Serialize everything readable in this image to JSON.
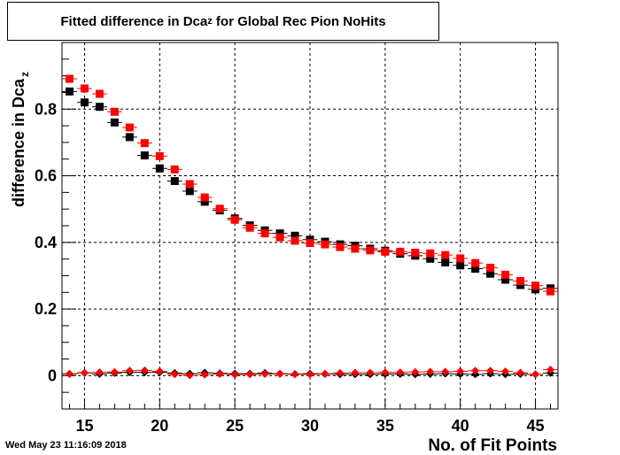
{
  "title": {
    "prefix": "Fitted difference in Dca",
    "subscript": "z",
    "suffix": " for Global Rec Pion NoHits"
  },
  "timestamp": "Wed May 23 11:16:09 2018",
  "chart_data": {
    "type": "scatter",
    "title": "Fitted difference in Dca_z for Global Rec Pion NoHits",
    "xlabel": "No. of Fit Points",
    "ylabel_prefix": "difference in Dca",
    "ylabel_subscript": "z",
    "xlim": [
      13.5,
      46.5
    ],
    "ylim": [
      -0.1,
      1.0
    ],
    "grid": true,
    "x_ticks": [
      15,
      20,
      25,
      30,
      35,
      40,
      45
    ],
    "y_ticks": [
      0,
      0.2,
      0.4,
      0.6,
      0.8
    ],
    "y_tick_labels": [
      "0",
      "0.2",
      "0.4",
      "0.6",
      "0.8"
    ],
    "x": [
      14,
      15,
      16,
      17,
      18,
      19,
      20,
      21,
      22,
      23,
      24,
      25,
      26,
      27,
      28,
      29,
      30,
      31,
      32,
      33,
      34,
      35,
      36,
      37,
      38,
      39,
      40,
      41,
      42,
      43,
      44,
      45,
      46
    ],
    "series": [
      {
        "color": "#000000",
        "marker": "square",
        "values": [
          0.853,
          0.82,
          0.807,
          0.76,
          0.716,
          0.661,
          0.622,
          0.584,
          0.554,
          0.522,
          0.496,
          0.472,
          0.451,
          0.436,
          0.427,
          0.42,
          0.408,
          0.402,
          0.394,
          0.39,
          0.381,
          0.375,
          0.366,
          0.36,
          0.351,
          0.34,
          0.331,
          0.321,
          0.306,
          0.288,
          0.272,
          0.259,
          0.262
        ]
      },
      {
        "color": "#ff0000",
        "marker": "square",
        "values": [
          0.891,
          0.862,
          0.846,
          0.792,
          0.745,
          0.698,
          0.659,
          0.619,
          0.575,
          0.535,
          0.501,
          0.468,
          0.444,
          0.427,
          0.415,
          0.405,
          0.398,
          0.394,
          0.386,
          0.381,
          0.376,
          0.372,
          0.372,
          0.369,
          0.367,
          0.362,
          0.352,
          0.338,
          0.324,
          0.303,
          0.284,
          0.27,
          0.253
        ]
      },
      {
        "color": "#000000",
        "marker": "diamond",
        "values": [
          0.005,
          0.008,
          0.005,
          0.008,
          0.01,
          0.01,
          0.01,
          0.008,
          0.006,
          0.009,
          0.007,
          0.006,
          0.006,
          0.008,
          0.006,
          0.005,
          0.006,
          0.005,
          0.004,
          0.004,
          0.004,
          0.005,
          0.005,
          0.004,
          0.005,
          0.006,
          0.005,
          0.004,
          0.006,
          0.004,
          0.005,
          0.004,
          0.008
        ]
      },
      {
        "color": "#ff0000",
        "marker": "diamond",
        "values": [
          0.006,
          0.009,
          0.01,
          0.011,
          0.015,
          0.016,
          0.013,
          0.004,
          0.001,
          0.003,
          0.005,
          0.003,
          0.004,
          0.005,
          0.005,
          0.004,
          0.004,
          0.006,
          0.008,
          0.009,
          0.009,
          0.01,
          0.01,
          0.011,
          0.012,
          0.012,
          0.013,
          0.015,
          0.015,
          0.013,
          0.009,
          0.004,
          0.018
        ]
      }
    ]
  }
}
